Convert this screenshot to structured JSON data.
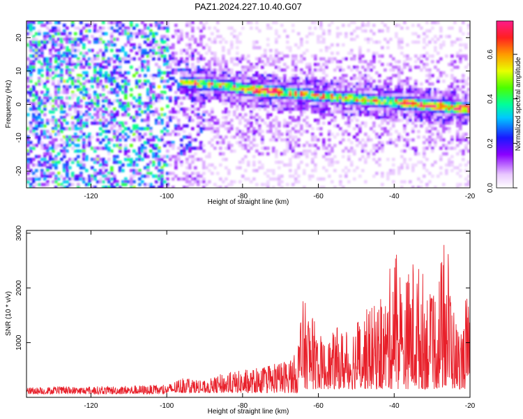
{
  "title": "PAZ1.2024.227.10.40.G07",
  "chart_data": [
    {
      "type": "heatmap",
      "name": "spectrogram",
      "xlabel": "Height of straight line (km)",
      "ylabel": "Frequency (Hz)",
      "xlim": [
        -137,
        -20
      ],
      "ylim": [
        -25,
        25
      ],
      "xticks": [
        -120,
        -100,
        -80,
        -60,
        -40,
        -20
      ],
      "yticks": [
        20,
        10,
        0,
        -10,
        -20
      ],
      "colorbar": {
        "label": "Normalized spectral amplitude",
        "range": [
          0,
          0.75
        ],
        "ticks": [
          0.0,
          0.2,
          0.4,
          0.6
        ]
      },
      "ridge": {
        "x": [
          -97,
          -90,
          -85,
          -80,
          -75,
          -70,
          -65,
          -60,
          -55,
          -50,
          -45,
          -40,
          -35,
          -30,
          -25,
          -20
        ],
        "y": [
          7,
          6.5,
          6,
          5,
          4.5,
          4,
          3.5,
          3,
          2.5,
          2,
          1.5,
          1,
          0.5,
          0,
          -0.5,
          -1
        ]
      }
    },
    {
      "type": "line",
      "name": "snr",
      "xlabel": "Height of straight line (km)",
      "ylabel": "SNR (10 * v/v)",
      "xlim": [
        -137,
        -20
      ],
      "ylim": [
        0,
        3050
      ],
      "xticks": [
        -120,
        -100,
        -80,
        -60,
        -40,
        -20
      ],
      "yticks": [
        1000,
        2000,
        3000
      ],
      "color": "#e8202a",
      "envelope": {
        "x": [
          -137,
          -130,
          -120,
          -110,
          -100,
          -95,
          -90,
          -85,
          -80,
          -75,
          -70,
          -66,
          -64,
          -62,
          -60,
          -58,
          -55,
          -52,
          -50,
          -48,
          -45,
          -42,
          -40,
          -38,
          -35,
          -32,
          -30,
          -28,
          -26,
          -24,
          -22,
          -21,
          -20
        ],
        "y": [
          180,
          200,
          200,
          220,
          230,
          400,
          300,
          450,
          500,
          550,
          650,
          800,
          1800,
          1600,
          1200,
          1000,
          1300,
          1200,
          1500,
          1600,
          1700,
          1900,
          3000,
          2000,
          2600,
          2300,
          1800,
          2500,
          3000,
          1500,
          1200,
          2000,
          1500
        ]
      }
    }
  ]
}
